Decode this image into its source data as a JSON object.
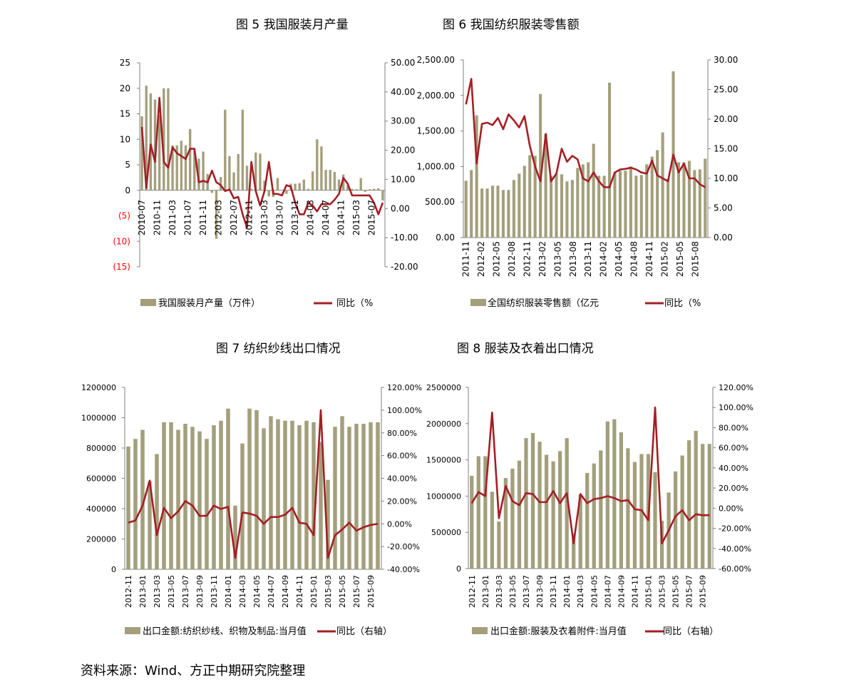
{
  "figure_titles": {
    "fig5": "图 5 我国服装月产量",
    "fig6": "图 6 我国纺织服装零售额",
    "fig7": "图 7  纺织纱线出口情况",
    "fig8": "图 8  服装及衣着出口情况"
  },
  "source": "资料来源：Wind、方正中期研究院整理",
  "colors": {
    "bar": "#a39f7c",
    "line": "#a41f24",
    "negative_tick": "#ff0000",
    "axis": "#808080"
  },
  "chart_data": [
    {
      "id": "fig5",
      "type": "bar",
      "title": "图 5 我国服装月产量",
      "left_ticks": [
        "25",
        "20",
        "15",
        "10",
        "5",
        "0",
        "(5)",
        "(10)",
        "(15)"
      ],
      "right_ticks": [
        "50.00",
        "40.00",
        "30.00",
        "20.00",
        "10.00",
        "0.00",
        "-10.00",
        "-20.00"
      ],
      "x_ticks": [
        "2010-07",
        "2010-11",
        "2011-03",
        "2011-07",
        "2011-11",
        "2012-03",
        "2012-07",
        "2012-11",
        "2013-03",
        "2013-07",
        "2013-11",
        "2014-03",
        "2014-07",
        "2014-11",
        "2015-03",
        "2015-07"
      ],
      "ylim": [
        -15,
        25
      ],
      "y2lim": [
        -20,
        50
      ],
      "series": [
        {
          "name": "我国服装月产量（万件）",
          "kind": "bar",
          "axis": "left",
          "values": [
            14.5,
            20.5,
            19.0,
            17.8,
            14.8,
            20.0,
            20.0,
            8.8,
            8.8,
            9.7,
            8.8,
            12.0,
            7.8,
            6.2,
            7.6,
            3.2,
            -0.5,
            -9.5,
            2.6,
            15.8,
            6.7,
            3.5,
            7.1,
            15.8,
            4.8,
            0.3,
            7.4,
            7.2,
            1.9,
            -1.2,
            -1.3,
            2.4,
            0.1,
            -0.7,
            1.3,
            1.3,
            1.4,
            2.1,
            0.3,
            3.7,
            10.0,
            8.6,
            4.0,
            4.0,
            3.6,
            2.1,
            3.1,
            1.0,
            0.3,
            0.2,
            2.4,
            -0.3,
            0.2,
            0.3,
            0.4,
            -2.0
          ]
        },
        {
          "name": "同比（%",
          "kind": "line",
          "axis": "right",
          "values": [
            28.0,
            7.0,
            22.0,
            16.0,
            38.0,
            16.0,
            14.0,
            21.0,
            19.0,
            18.0,
            17.0,
            20.5,
            20.5,
            9.0,
            9.5,
            9.0,
            13.0,
            9.0,
            8.0,
            6.0,
            6.5,
            3.5,
            4.0,
            -2.0,
            -6.5,
            16.0,
            6.0,
            1.0,
            6.0,
            16.0,
            5.0,
            5.0,
            4.5,
            8.0,
            7.5,
            2.0,
            -2.0,
            -2.0,
            2.0,
            1.0,
            -1.0,
            1.5,
            1.5,
            1.5,
            3.0,
            5.0,
            10.5,
            8.5,
            4.5,
            4.5,
            4.5,
            4.5,
            4.5,
            2.0,
            -2.0,
            2.0
          ]
        }
      ]
    },
    {
      "id": "fig6",
      "type": "bar",
      "title": "图 6 我国纺织服装零售额",
      "left_ticks": [
        "2,500.00",
        "2,000.00",
        "1,500.00",
        "1,000.00",
        "500.00",
        "0.00"
      ],
      "right_ticks": [
        "30.00",
        "25.00",
        "20.00",
        "15.00",
        "10.00",
        "5.00",
        "0.00"
      ],
      "x_ticks": [
        "2011-11",
        "2012-02",
        "2012-05",
        "2012-08",
        "2012-11",
        "2013-02",
        "2013-05",
        "2013-08",
        "2013-11",
        "2014-02",
        "2014-05",
        "2014-08",
        "2014-11",
        "2015-02",
        "2015-05",
        "2015-08"
      ],
      "ylim": [
        0,
        2500
      ],
      "y2lim": [
        0,
        30
      ],
      "series": [
        {
          "name": "全国纺织服装零售额（亿元",
          "kind": "bar",
          "axis": "left",
          "values": [
            800,
            950,
            1720,
            690,
            690,
            730,
            730,
            670,
            670,
            810,
            900,
            1010,
            1160,
            1150,
            2020,
            1460,
            870,
            900,
            890,
            790,
            810,
            980,
            1030,
            1060,
            1320,
            870,
            870,
            2180,
            920,
            940,
            940,
            1000,
            870,
            880,
            1030,
            1140,
            1230,
            1480,
            830,
            2340,
            1060,
            1060,
            1080,
            950,
            960,
            1110
          ]
        },
        {
          "name": "同比（%",
          "kind": "line",
          "axis": "right",
          "values": [
            22.5,
            26.8,
            12.5,
            19.2,
            19.4,
            19.0,
            20.2,
            18.3,
            20.8,
            19.8,
            18.6,
            20.5,
            15.5,
            12.0,
            9.5,
            17.5,
            9.5,
            10.8,
            15.0,
            12.8,
            13.8,
            13.2,
            10.0,
            9.5,
            11.0,
            9.5,
            8.5,
            8.5,
            11.0,
            11.5,
            11.6,
            11.8,
            11.5,
            11.0,
            10.8,
            13.0,
            10.5,
            10.0,
            9.5,
            14.0,
            11.0,
            12.5,
            10.0,
            10.0,
            9.0,
            8.5
          ]
        }
      ]
    },
    {
      "id": "fig7",
      "type": "bar",
      "title": "图 7  纺织纱线出口情况",
      "left_ticks": [
        "1200000",
        "1000000",
        "800000",
        "600000",
        "400000",
        "200000",
        "0"
      ],
      "right_ticks": [
        "120.00%",
        "100.00%",
        "80.00%",
        "60.00%",
        "40.00%",
        "20.00%",
        "0.00%",
        "-20.00%",
        "-40.00%"
      ],
      "x_ticks": [
        "2012-11",
        "2013-01",
        "2013-03",
        "2013-05",
        "2013-07",
        "2013-09",
        "2013-11",
        "2014-01",
        "2014-03",
        "2014-05",
        "2014-07",
        "2014-09",
        "2014-11",
        "2015-01",
        "2015-03",
        "2015-05",
        "2015-07",
        "2015-09"
      ],
      "ylim": [
        0,
        1200000
      ],
      "y2lim": [
        -40,
        120
      ],
      "series": [
        {
          "name": "出口金额:纺织纱线、织物及制品:当月值",
          "kind": "bar",
          "axis": "left",
          "values": [
            810000,
            860000,
            920000,
            580000,
            760000,
            970000,
            970000,
            920000,
            960000,
            940000,
            910000,
            860000,
            950000,
            980000,
            1060000,
            420000,
            830000,
            1060000,
            1050000,
            930000,
            1010000,
            990000,
            980000,
            980000,
            950000,
            980000,
            970000,
            840000,
            590000,
            940000,
            1010000,
            940000,
            960000,
            960000,
            970000,
            970000
          ]
        },
        {
          "name": "同比（右轴）",
          "kind": "line",
          "axis": "right",
          "values": [
            1.0,
            3.0,
            16.0,
            38.0,
            -10.0,
            14.0,
            5.0,
            11.0,
            20.0,
            16.0,
            7.0,
            7.0,
            16.0,
            13.0,
            15.0,
            -30.0,
            10.0,
            9.0,
            7.0,
            0.0,
            6.0,
            6.0,
            8.0,
            14.0,
            1.0,
            0.0,
            -10.0,
            100.0,
            -30.0,
            -10.0,
            -5.0,
            1.0,
            -6.0,
            -3.0,
            -1.0,
            0.0
          ]
        }
      ]
    },
    {
      "id": "fig8",
      "type": "bar",
      "title": "图 8  服装及衣着出口情况",
      "left_ticks": [
        "2500000",
        "2000000",
        "1500000",
        "1000000",
        "500000",
        "0"
      ],
      "right_ticks": [
        "120.00%",
        "100.00%",
        "80.00%",
        "60.00%",
        "40.00%",
        "20.00%",
        "0.00%",
        "-20.00%",
        "-40.00%",
        "-60.00%"
      ],
      "x_ticks": [
        "2012-11",
        "2013-01",
        "2013-03",
        "2013-05",
        "2013-07",
        "2013-09",
        "2013-11",
        "2014-01",
        "2014-03",
        "2014-05",
        "2014-07",
        "2014-09",
        "2014-11",
        "2015-01",
        "2015-03",
        "2015-05",
        "2015-07",
        "2015-09"
      ],
      "ylim": [
        0,
        2500000
      ],
      "y2lim": [
        -60,
        120
      ],
      "series": [
        {
          "name": "出口金额:服装及衣着附件:当月值",
          "kind": "bar",
          "axis": "left",
          "values": [
            1280000,
            1550000,
            1550000,
            1060000,
            650000,
            1250000,
            1380000,
            1490000,
            1800000,
            1870000,
            1750000,
            1570000,
            1480000,
            1620000,
            1800000,
            480000,
            1020000,
            1320000,
            1450000,
            1630000,
            2030000,
            2060000,
            1880000,
            1660000,
            1470000,
            1580000,
            1580000,
            1330000,
            660000,
            1050000,
            1340000,
            1560000,
            1770000,
            1900000,
            1720000,
            1720000
          ]
        },
        {
          "name": "同比（右轴）",
          "kind": "line",
          "axis": "right",
          "values": [
            5.0,
            16.0,
            12.0,
            95.0,
            -10.0,
            22.0,
            7.0,
            3.0,
            15.0,
            14.0,
            6.0,
            6.0,
            17.0,
            5.0,
            15.0,
            -35.0,
            14.0,
            5.0,
            9.0,
            10.0,
            12.0,
            10.0,
            7.0,
            8.0,
            -1.0,
            -2.0,
            -12.0,
            100.0,
            -35.0,
            -22.0,
            -8.0,
            -2.0,
            -12.0,
            -6.0,
            -7.0,
            -7.0
          ]
        }
      ]
    }
  ]
}
